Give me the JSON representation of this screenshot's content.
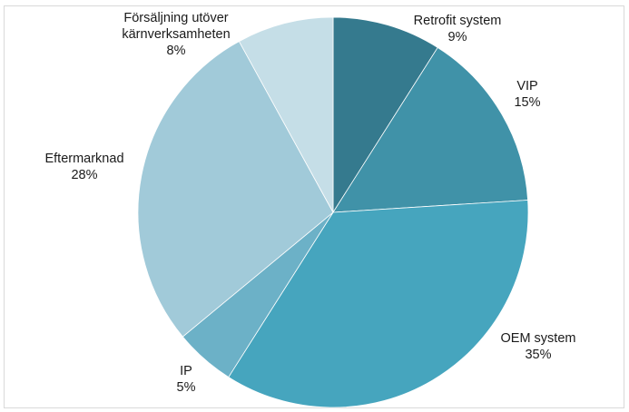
{
  "chart_data": {
    "type": "pie",
    "title": "",
    "legend": "none",
    "slices": [
      {
        "label": "Retrofit system",
        "value": 9,
        "value_text": "9%",
        "color": "#357A8E"
      },
      {
        "label": "VIP",
        "value": 15,
        "value_text": "15%",
        "color": "#4092A8"
      },
      {
        "label": "OEM system",
        "value": 35,
        "value_text": "35%",
        "color": "#46A5BE"
      },
      {
        "label": "IP",
        "value": 5,
        "value_text": "5%",
        "color": "#6CB1C7"
      },
      {
        "label": "Eftermarknad",
        "value": 28,
        "value_text": "28%",
        "color": "#A1CAD9"
      },
      {
        "label": "Försäljning utöver kärnverksamheten",
        "label_lines": [
          "Försäljning utöver",
          "kärnverksamheten"
        ],
        "value": 8,
        "value_text": "8%",
        "color": "#C5DEE7"
      }
    ]
  }
}
